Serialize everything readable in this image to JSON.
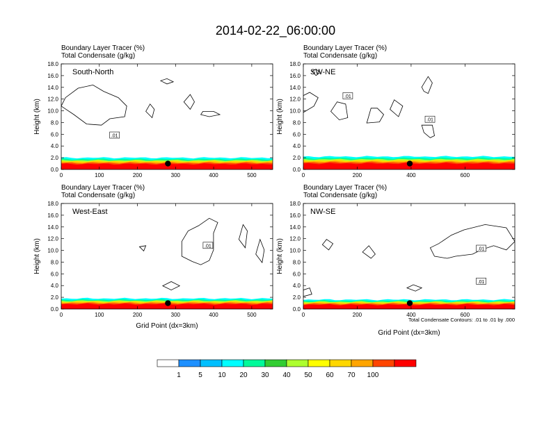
{
  "title": "2014-02-22_06:00:00",
  "colors": {
    "contour": "#000000",
    "axes": "#000000",
    "bands": [
      "#ffffff",
      "#1e90ff",
      "#00bfff",
      "#00ffff",
      "#00fa9a",
      "#32cd32",
      "#adff2f",
      "#ffff00",
      "#ffd700",
      "#ffa500",
      "#ff4500",
      "#ff0000"
    ]
  },
  "chart_data": [
    {
      "type": "heatmap",
      "panel_label": "South-North",
      "title_lines": [
        "Boundary Layer Tracer    (%)",
        "Total Condensate   (g/kg)"
      ],
      "xlabel": "",
      "ylabel": "Height (km)",
      "xlim": [
        0,
        555
      ],
      "ylim": [
        0,
        18
      ],
      "x_ticks": [
        "0",
        "100",
        "200",
        "300",
        "400",
        "500"
      ],
      "y_ticks": [
        "0.0",
        "2.0",
        "4.0",
        "6.0",
        "8.0",
        "10.0",
        "12.0",
        "14.0",
        "16.0",
        "18.0"
      ],
      "marker": {
        "x": 280,
        "y": 1.0
      },
      "contour_label": {
        "text": ".01",
        "x": 140,
        "y": 5.8
      },
      "tracer_top_km": 2.0
    },
    {
      "type": "heatmap",
      "panel_label": "SW-NE",
      "title_lines": [
        "Boundary Layer Tracer    (%)",
        "Total Condensate   (g/kg)"
      ],
      "xlabel": "",
      "ylabel": "Height (km)",
      "xlim": [
        0,
        785
      ],
      "ylim": [
        0,
        18
      ],
      "x_ticks": [
        "0",
        "200",
        "400",
        "600"
      ],
      "y_ticks": [
        "0.0",
        "2.0",
        "4.0",
        "6.0",
        "8.0",
        "10.0",
        "12.0",
        "14.0",
        "16.0",
        "18.0"
      ],
      "marker": {
        "x": 395,
        "y": 1.0
      },
      "contour_label": {
        "text": ".01",
        "x": 470,
        "y": 8.5
      },
      "contour_label_2": {
        "text": ".01",
        "x": 165,
        "y": 12.5
      },
      "tracer_top_km": 2.2
    },
    {
      "type": "heatmap",
      "panel_label": "West-East",
      "title_lines": [
        "Boundary Layer Tracer    (%)",
        "Total Condensate   (g/kg)"
      ],
      "xlabel": "Grid Point (dx=3km)",
      "ylabel": "Height (km)",
      "xlim": [
        0,
        555
      ],
      "ylim": [
        0,
        18
      ],
      "x_ticks": [
        "0",
        "100",
        "200",
        "300",
        "400",
        "500"
      ],
      "y_ticks": [
        "0.0",
        "2.0",
        "4.0",
        "6.0",
        "8.0",
        "10.0",
        "12.0",
        "14.0",
        "16.0",
        "18.0"
      ],
      "marker": {
        "x": 280,
        "y": 1.0
      },
      "contour_label": {
        "text": ".01",
        "x": 385,
        "y": 10.8
      },
      "tracer_top_km": 1.8
    },
    {
      "type": "heatmap",
      "panel_label": "NW-SE",
      "title_lines": [
        "Boundary Layer Tracer    (%)",
        "Total Condensate   (g/kg)"
      ],
      "xlabel": "Grid Point (dx=3km)",
      "ylabel": "Height (km)",
      "xlim": [
        0,
        785
      ],
      "ylim": [
        0,
        18
      ],
      "x_ticks": [
        "0",
        "200",
        "400",
        "600"
      ],
      "y_ticks": [
        "0.0",
        "2.0",
        "4.0",
        "6.0",
        "8.0",
        "10.0",
        "12.0",
        "14.0",
        "16.0",
        "18.0"
      ],
      "marker": {
        "x": 395,
        "y": 1.0
      },
      "contour_label": {
        "text": ".01",
        "x": 660,
        "y": 10.3
      },
      "contour_label_2": {
        "text": ".01",
        "x": 660,
        "y": 4.7
      },
      "tracer_top_km": 1.6,
      "footnote": "Total Condensate Contours: .01 to .01 by .000"
    }
  ],
  "colorbar": {
    "labels": [
      "1",
      "5",
      "10",
      "20",
      "30",
      "40",
      "50",
      "60",
      "70",
      "100"
    ]
  }
}
